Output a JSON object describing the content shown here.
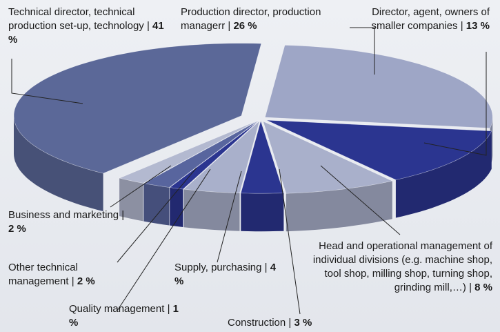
{
  "chart_data": {
    "type": "pie",
    "three_d": true,
    "label_separator": "|",
    "categories": [
      "Production director, production managerr",
      "Director, agent, owners of smaller companies",
      "Head and operational management of individual divisions (e.g. machine shop, tool shop, milling shop, turning shop, grinding mill,…)",
      "Construction",
      "Supply, purchasing",
      "Quality management",
      "Other technical management",
      "Business and marketing",
      "Technical director, technical production set-up, technology"
    ],
    "values": [
      26,
      13,
      8,
      3,
      4,
      1,
      2,
      2,
      41
    ],
    "value_labels": [
      "26 %",
      "13 %",
      "8 %",
      "3 %",
      "4 %",
      "1 %",
      "2 %",
      "2 %",
      "41 %"
    ],
    "colors": [
      "#9ea6c6",
      "#2b3590",
      "#a9b0cb",
      "#2b3590",
      "#a9b0cb",
      "#2b3590",
      "#58659e",
      "#b3b9d0",
      "#5b6898"
    ]
  }
}
